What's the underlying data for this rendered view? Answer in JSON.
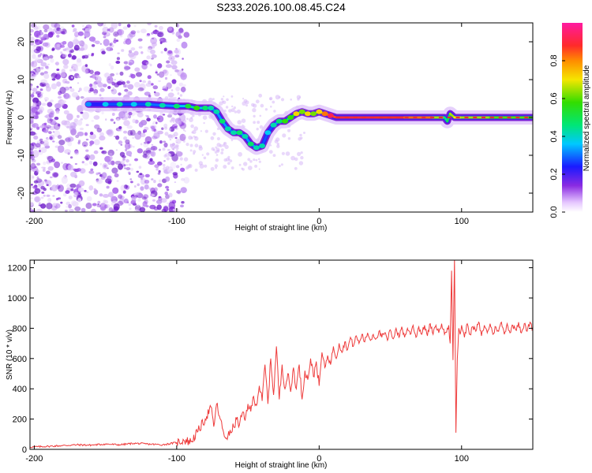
{
  "chart_data": [
    {
      "type": "heatmap",
      "title": "S233.2026.100.08.45.C24",
      "xlabel": "Height of straight line (km)",
      "ylabel": "Frequency (Hz)",
      "xlim": [
        -203,
        150
      ],
      "ylim": [
        -25,
        25
      ],
      "xticks": [
        -200,
        -100,
        0,
        100
      ],
      "yticks": [
        -20,
        -10,
        0,
        10,
        20
      ],
      "colorbar": {
        "label": "Normalized spectral amplitude",
        "range": [
          0,
          1
        ],
        "ticks": [
          0.0,
          0.2,
          0.4,
          0.6,
          0.8
        ]
      },
      "ridge": {
        "x": [
          -162,
          -150,
          -140,
          -130,
          -120,
          -110,
          -100,
          -92,
          -86,
          -80,
          -76,
          -72,
          -68,
          -64,
          -60,
          -56,
          -52,
          -48,
          -44,
          -40,
          -36,
          -32,
          -28,
          -24,
          -20,
          -16,
          -12,
          -8,
          -4,
          0,
          4,
          8,
          12,
          20,
          40,
          60,
          80,
          88,
          90,
          92,
          95,
          100,
          120,
          150
        ],
        "y": [
          3.5,
          3.5,
          3.5,
          3.5,
          3.5,
          3.2,
          3,
          3,
          2.5,
          2.5,
          2.5,
          1.5,
          -1,
          -3,
          -4,
          -4,
          -5,
          -7,
          -8,
          -7.5,
          -4,
          -2,
          -1,
          -1,
          0,
          1,
          1.5,
          1,
          1,
          1.5,
          1,
          0.5,
          0,
          0,
          0,
          0,
          0,
          0,
          -1,
          1,
          0,
          0,
          0,
          0
        ],
        "amplitude": [
          0.2,
          0.25,
          0.3,
          0.25,
          0.3,
          0.3,
          0.35,
          0.4,
          0.45,
          0.35,
          0.3,
          0.3,
          0.35,
          0.3,
          0.3,
          0.35,
          0.3,
          0.35,
          0.3,
          0.3,
          0.25,
          0.3,
          0.35,
          0.45,
          0.45,
          0.6,
          0.5,
          0.6,
          0.5,
          0.6,
          0.7,
          0.8,
          0.9,
          0.9,
          0.9,
          0.85,
          0.8,
          0.5,
          0.4,
          0.6,
          0.7,
          0.7,
          0.6,
          0.6
        ]
      }
    },
    {
      "type": "line",
      "title": "",
      "xlabel": "Height of straight line (km)",
      "ylabel": "SNR (10 * v/v)",
      "xlim": [
        -203,
        150
      ],
      "ylim": [
        0,
        1250
      ],
      "xticks": [
        -200,
        -100,
        0,
        100
      ],
      "yticks": [
        0,
        200,
        400,
        600,
        800,
        1000,
        1200
      ],
      "series": [
        {
          "name": "SNR",
          "color": "#ee3b3b",
          "x": [
            -203,
            -190,
            -180,
            -170,
            -160,
            -150,
            -140,
            -130,
            -120,
            -110,
            -100,
            -95,
            -90,
            -85,
            -80,
            -76,
            -74,
            -72,
            -70,
            -68,
            -66,
            -64,
            -62,
            -60,
            -58,
            -56,
            -54,
            -52,
            -50,
            -48,
            -46,
            -44,
            -42,
            -40,
            -38,
            -36,
            -34,
            -32,
            -30,
            -28,
            -26,
            -24,
            -22,
            -20,
            -18,
            -16,
            -14,
            -12,
            -10,
            -8,
            -6,
            -4,
            -2,
            0,
            2,
            4,
            6,
            8,
            10,
            12,
            14,
            16,
            18,
            20,
            22,
            24,
            26,
            28,
            30,
            32,
            34,
            36,
            38,
            40,
            42,
            44,
            46,
            48,
            50,
            52,
            54,
            56,
            58,
            60,
            62,
            64,
            66,
            68,
            70,
            72,
            74,
            76,
            78,
            80,
            82,
            84,
            86,
            88,
            90,
            91,
            92,
            93,
            94,
            95,
            96,
            97,
            98,
            99,
            100,
            102,
            104,
            106,
            108,
            110,
            112,
            114,
            116,
            118,
            120,
            122,
            124,
            126,
            128,
            130,
            132,
            134,
            136,
            138,
            140,
            142,
            144,
            146,
            148,
            150
          ],
          "values": [
            15,
            20,
            25,
            30,
            28,
            35,
            30,
            40,
            35,
            30,
            45,
            60,
            50,
            120,
            200,
            280,
            150,
            300,
            220,
            140,
            80,
            90,
            110,
            150,
            200,
            160,
            240,
            190,
            300,
            250,
            350,
            290,
            420,
            320,
            560,
            300,
            600,
            360,
            680,
            330,
            560,
            400,
            500,
            380,
            540,
            400,
            560,
            330,
            520,
            460,
            600,
            480,
            580,
            420,
            640,
            540,
            620,
            560,
            680,
            600,
            700,
            640,
            710,
            660,
            740,
            680,
            750,
            700,
            760,
            710,
            770,
            720,
            760,
            730,
            780,
            740,
            770,
            720,
            790,
            730,
            800,
            740,
            810,
            740,
            800,
            760,
            820,
            740,
            810,
            760,
            820,
            750,
            830,
            760,
            820,
            770,
            830,
            760,
            800,
            820,
            700,
            1180,
            590,
            1260,
            110,
            600,
            800,
            760,
            820,
            740,
            830,
            760,
            810,
            780,
            840,
            750,
            820,
            770,
            830,
            760,
            810,
            780,
            840,
            760,
            830,
            770,
            820,
            790,
            840,
            770,
            830,
            780,
            840,
            790
          ]
        }
      ]
    }
  ]
}
